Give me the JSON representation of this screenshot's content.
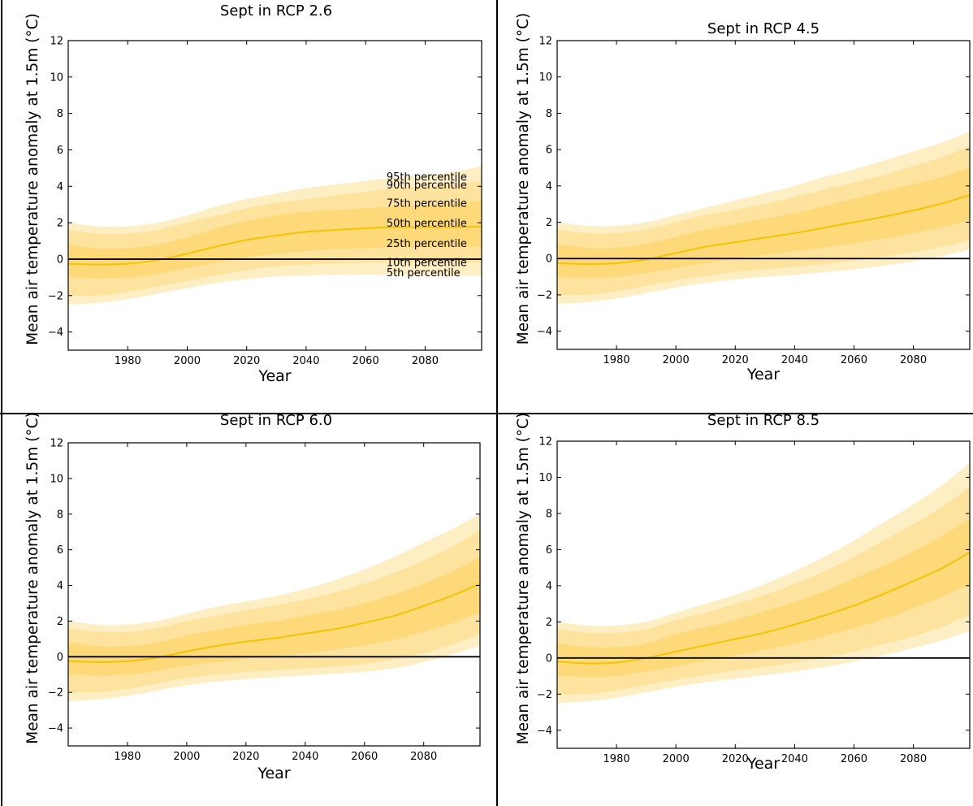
{
  "chart_data": [
    {
      "type": "area",
      "title": "Sept in RCP 2.6",
      "xlabel": "Year",
      "ylabel": "Mean air temperature anomaly at 1.5m (°C)",
      "xlim": [
        1960,
        2099
      ],
      "ylim": [
        -5,
        12
      ],
      "xticks": [
        "1980",
        "2000",
        "2020",
        "2040",
        "2060",
        "2080"
      ],
      "yticks": [
        "−4",
        "−2",
        "0",
        "2",
        "4",
        "6",
        "8",
        "10",
        "12"
      ],
      "legend_labels": [
        "95th percentile",
        "90th percentile",
        "75th percentile",
        "50th percentile",
        "25th percentile",
        "10th percentile",
        "5th percentile"
      ],
      "x": [
        1960,
        1970,
        1980,
        1990,
        2000,
        2010,
        2020,
        2030,
        2040,
        2050,
        2060,
        2070,
        2080,
        2090,
        2099
      ],
      "series": [
        {
          "name": "95th percentile",
          "values": [
            2.0,
            1.8,
            1.8,
            2.0,
            2.4,
            2.9,
            3.3,
            3.6,
            3.9,
            4.1,
            4.3,
            4.5,
            4.6,
            4.8,
            5.1
          ]
        },
        {
          "name": "90th percentile",
          "values": [
            1.6,
            1.4,
            1.4,
            1.6,
            2.0,
            2.4,
            2.8,
            3.1,
            3.3,
            3.5,
            3.7,
            3.9,
            4.0,
            4.1,
            4.3
          ]
        },
        {
          "name": "75th percentile",
          "values": [
            0.8,
            0.6,
            0.6,
            0.8,
            1.2,
            1.7,
            2.1,
            2.4,
            2.6,
            2.7,
            2.8,
            2.9,
            3.0,
            3.1,
            3.2
          ]
        },
        {
          "name": "50th percentile",
          "values": [
            -0.25,
            -0.3,
            -0.25,
            -0.05,
            0.3,
            0.7,
            1.05,
            1.3,
            1.5,
            1.6,
            1.7,
            1.75,
            1.75,
            1.75,
            1.8
          ]
        },
        {
          "name": "25th percentile",
          "values": [
            -1.0,
            -1.05,
            -1.0,
            -0.8,
            -0.5,
            -0.2,
            0.1,
            0.3,
            0.45,
            0.55,
            0.6,
            0.65,
            0.65,
            0.65,
            0.7
          ]
        },
        {
          "name": "10th percentile",
          "values": [
            -2.0,
            -2.0,
            -1.8,
            -1.5,
            -1.2,
            -0.9,
            -0.6,
            -0.4,
            -0.3,
            -0.25,
            -0.2,
            -0.2,
            -0.2,
            -0.2,
            -0.2
          ]
        },
        {
          "name": "5th percentile",
          "values": [
            -2.5,
            -2.4,
            -2.2,
            -1.9,
            -1.6,
            -1.3,
            -1.1,
            -0.95,
            -0.9,
            -0.85,
            -0.85,
            -0.85,
            -0.9,
            -0.9,
            -0.9
          ]
        }
      ]
    },
    {
      "type": "area",
      "title": "Sept in RCP 4.5",
      "xlabel": "Year",
      "ylabel": "Mean air temperature anomaly at 1.5m (°C)",
      "xlim": [
        1960,
        2099
      ],
      "ylim": [
        -5,
        12
      ],
      "xticks": [
        "1980",
        "2000",
        "2020",
        "2040",
        "2060",
        "2080"
      ],
      "yticks": [
        "−4",
        "−2",
        "0",
        "2",
        "4",
        "6",
        "8",
        "10",
        "12"
      ],
      "x": [
        1960,
        1970,
        1980,
        1990,
        2000,
        2010,
        2020,
        2030,
        2040,
        2050,
        2060,
        2070,
        2080,
        2090,
        2099
      ],
      "series": [
        {
          "name": "95th percentile",
          "values": [
            2.0,
            1.8,
            1.8,
            2.0,
            2.4,
            2.8,
            3.2,
            3.6,
            4.0,
            4.5,
            4.9,
            5.4,
            5.9,
            6.4,
            7.0
          ]
        },
        {
          "name": "90th percentile",
          "values": [
            1.6,
            1.4,
            1.4,
            1.6,
            2.0,
            2.4,
            2.7,
            3.0,
            3.4,
            3.8,
            4.2,
            4.6,
            5.1,
            5.6,
            6.2
          ]
        },
        {
          "name": "75th percentile",
          "values": [
            0.8,
            0.6,
            0.6,
            0.8,
            1.2,
            1.6,
            1.9,
            2.2,
            2.5,
            2.9,
            3.3,
            3.7,
            4.1,
            4.5,
            5.0
          ]
        },
        {
          "name": "50th percentile",
          "values": [
            -0.25,
            -0.3,
            -0.25,
            -0.05,
            0.3,
            0.65,
            0.9,
            1.15,
            1.4,
            1.7,
            2.0,
            2.3,
            2.65,
            3.05,
            3.5
          ]
        },
        {
          "name": "25th percentile",
          "values": [
            -1.0,
            -1.05,
            -1.0,
            -0.8,
            -0.5,
            -0.25,
            0.0,
            0.2,
            0.4,
            0.6,
            0.85,
            1.1,
            1.4,
            1.75,
            2.1
          ]
        },
        {
          "name": "10th percentile",
          "values": [
            -2.0,
            -2.0,
            -1.8,
            -1.5,
            -1.2,
            -0.95,
            -0.75,
            -0.6,
            -0.45,
            -0.3,
            -0.1,
            0.1,
            0.35,
            0.65,
            1.0
          ]
        },
        {
          "name": "5th percentile",
          "values": [
            -2.5,
            -2.4,
            -2.2,
            -1.9,
            -1.6,
            -1.35,
            -1.15,
            -1.0,
            -0.9,
            -0.75,
            -0.6,
            -0.4,
            -0.15,
            0.15,
            0.5
          ]
        }
      ]
    },
    {
      "type": "area",
      "title": "Sept in RCP 6.0",
      "xlabel": "Year",
      "ylabel": "Mean air temperature anomaly at 1.5m (°C)",
      "xlim": [
        1960,
        2099
      ],
      "ylim": [
        -5,
        12
      ],
      "xticks": [
        "1980",
        "2000",
        "2020",
        "2040",
        "2060",
        "2080"
      ],
      "yticks": [
        "−4",
        "−2",
        "0",
        "2",
        "4",
        "6",
        "8",
        "10",
        "12"
      ],
      "x": [
        1960,
        1970,
        1980,
        1990,
        2000,
        2010,
        2020,
        2030,
        2040,
        2050,
        2060,
        2070,
        2080,
        2090,
        2099
      ],
      "series": [
        {
          "name": "95th percentile",
          "values": [
            2.0,
            1.8,
            1.8,
            2.0,
            2.4,
            2.8,
            3.1,
            3.4,
            3.8,
            4.3,
            4.9,
            5.6,
            6.4,
            7.2,
            8.0
          ]
        },
        {
          "name": "90th percentile",
          "values": [
            1.6,
            1.4,
            1.4,
            1.6,
            2.0,
            2.3,
            2.6,
            2.9,
            3.2,
            3.6,
            4.1,
            4.7,
            5.4,
            6.2,
            7.1
          ]
        },
        {
          "name": "75th percentile",
          "values": [
            0.8,
            0.6,
            0.6,
            0.8,
            1.2,
            1.5,
            1.8,
            2.0,
            2.3,
            2.6,
            3.0,
            3.5,
            4.1,
            4.8,
            5.6
          ]
        },
        {
          "name": "50th percentile",
          "values": [
            -0.25,
            -0.3,
            -0.25,
            -0.05,
            0.3,
            0.6,
            0.85,
            1.05,
            1.3,
            1.55,
            1.9,
            2.3,
            2.85,
            3.45,
            4.1
          ]
        },
        {
          "name": "25th percentile",
          "values": [
            -1.0,
            -1.05,
            -1.0,
            -0.8,
            -0.5,
            -0.3,
            -0.1,
            0.05,
            0.2,
            0.4,
            0.65,
            0.95,
            1.4,
            1.9,
            2.5
          ]
        },
        {
          "name": "10th percentile",
          "values": [
            -2.0,
            -2.0,
            -1.8,
            -1.5,
            -1.2,
            -1.0,
            -0.85,
            -0.75,
            -0.65,
            -0.55,
            -0.4,
            -0.15,
            0.2,
            0.7,
            1.3
          ]
        },
        {
          "name": "5th percentile",
          "values": [
            -2.5,
            -2.4,
            -2.2,
            -1.9,
            -1.6,
            -1.4,
            -1.25,
            -1.15,
            -1.05,
            -0.95,
            -0.85,
            -0.65,
            -0.3,
            0.15,
            0.6
          ]
        }
      ]
    },
    {
      "type": "area",
      "title": "Sept in RCP 8.5",
      "xlabel": "Year",
      "ylabel": "Mean air temperature anomaly at 1.5m (°C)",
      "xlim": [
        1960,
        2099
      ],
      "ylim": [
        -5,
        12
      ],
      "xticks": [
        "1980",
        "2000",
        "2020",
        "2040",
        "2060",
        "2080"
      ],
      "yticks": [
        "−4",
        "−2",
        "0",
        "2",
        "4",
        "6",
        "8",
        "10",
        "12"
      ],
      "x": [
        1960,
        1970,
        1980,
        1990,
        2000,
        2010,
        2020,
        2030,
        2040,
        2050,
        2060,
        2070,
        2080,
        2090,
        2099
      ],
      "series": [
        {
          "name": "95th percentile",
          "values": [
            2.0,
            1.8,
            1.8,
            2.0,
            2.5,
            3.0,
            3.5,
            4.1,
            4.8,
            5.6,
            6.5,
            7.5,
            8.5,
            9.6,
            10.8
          ]
        },
        {
          "name": "90th percentile",
          "values": [
            1.6,
            1.4,
            1.4,
            1.6,
            2.1,
            2.5,
            3.0,
            3.5,
            4.1,
            4.8,
            5.6,
            6.5,
            7.4,
            8.4,
            9.5
          ]
        },
        {
          "name": "75th percentile",
          "values": [
            0.8,
            0.6,
            0.6,
            0.8,
            1.3,
            1.7,
            2.1,
            2.6,
            3.1,
            3.7,
            4.4,
            5.1,
            5.9,
            6.8,
            7.7
          ]
        },
        {
          "name": "50th percentile",
          "values": [
            -0.2,
            -0.3,
            -0.25,
            0.0,
            0.35,
            0.7,
            1.05,
            1.4,
            1.85,
            2.35,
            2.9,
            3.55,
            4.25,
            5.0,
            5.85
          ]
        },
        {
          "name": "25th percentile",
          "values": [
            -1.0,
            -1.05,
            -1.0,
            -0.75,
            -0.45,
            -0.15,
            0.15,
            0.45,
            0.8,
            1.2,
            1.65,
            2.15,
            2.75,
            3.4,
            4.1
          ]
        },
        {
          "name": "10th percentile",
          "values": [
            -2.0,
            -2.0,
            -1.8,
            -1.5,
            -1.2,
            -0.95,
            -0.7,
            -0.5,
            -0.25,
            0.0,
            0.35,
            0.75,
            1.2,
            1.75,
            2.4
          ]
        },
        {
          "name": "5th percentile",
          "values": [
            -2.5,
            -2.4,
            -2.2,
            -1.9,
            -1.6,
            -1.35,
            -1.15,
            -0.95,
            -0.75,
            -0.5,
            -0.2,
            0.15,
            0.55,
            1.0,
            1.5
          ]
        }
      ]
    }
  ],
  "colors": {
    "band_outer": "#fdeec4",
    "band_mid": "#fde39d",
    "band_inner": "#fdd97a",
    "median": "#f5c400",
    "zero_line": "#000000",
    "border": "#000000"
  }
}
